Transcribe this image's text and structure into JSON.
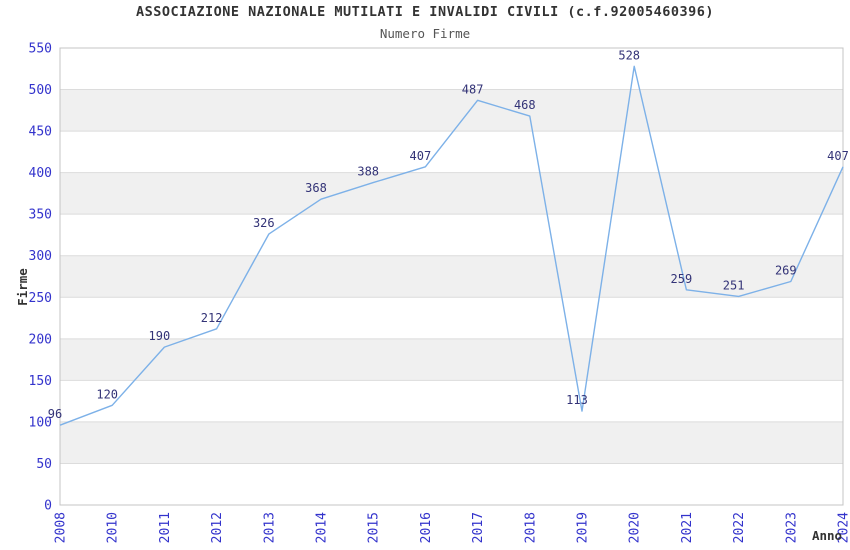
{
  "title": "ASSOCIAZIONE NAZIONALE MUTILATI E INVALIDI CIVILI (c.f.92005460396)",
  "subtitle": "Numero Firme",
  "chart_data": {
    "type": "line",
    "title": "ASSOCIAZIONE NAZIONALE MUTILATI E INVALIDI CIVILI (c.f.92005460396)",
    "subtitle": "Numero Firme",
    "categories": [
      "2008",
      "2010",
      "2011",
      "2012",
      "2013",
      "2014",
      "2015",
      "2016",
      "2017",
      "2018",
      "2019",
      "2020",
      "2021",
      "2022",
      "2023",
      "2024"
    ],
    "values": [
      96,
      120,
      190,
      212,
      326,
      368,
      388,
      407,
      487,
      468,
      113,
      528,
      259,
      251,
      269,
      407
    ],
    "xlabel": "Anno",
    "ylabel": "Firme",
    "ylim": [
      0,
      550
    ],
    "ytick_step": 50,
    "ytick_labels": [
      "0",
      "50",
      "100",
      "150",
      "200",
      "250",
      "300",
      "350",
      "400",
      "450",
      "500",
      "550"
    ],
    "grid": true,
    "legend_position": "none",
    "colors": {
      "line": "#7db1e8",
      "data_label": "#333377",
      "tick_label": "#3333cc",
      "axis_title": "#333333",
      "band": "#f0f0f0",
      "gridline": "#dcdcdc",
      "plot_border": "#c4c4c4",
      "title": "#333333",
      "subtitle": "#555555"
    }
  }
}
